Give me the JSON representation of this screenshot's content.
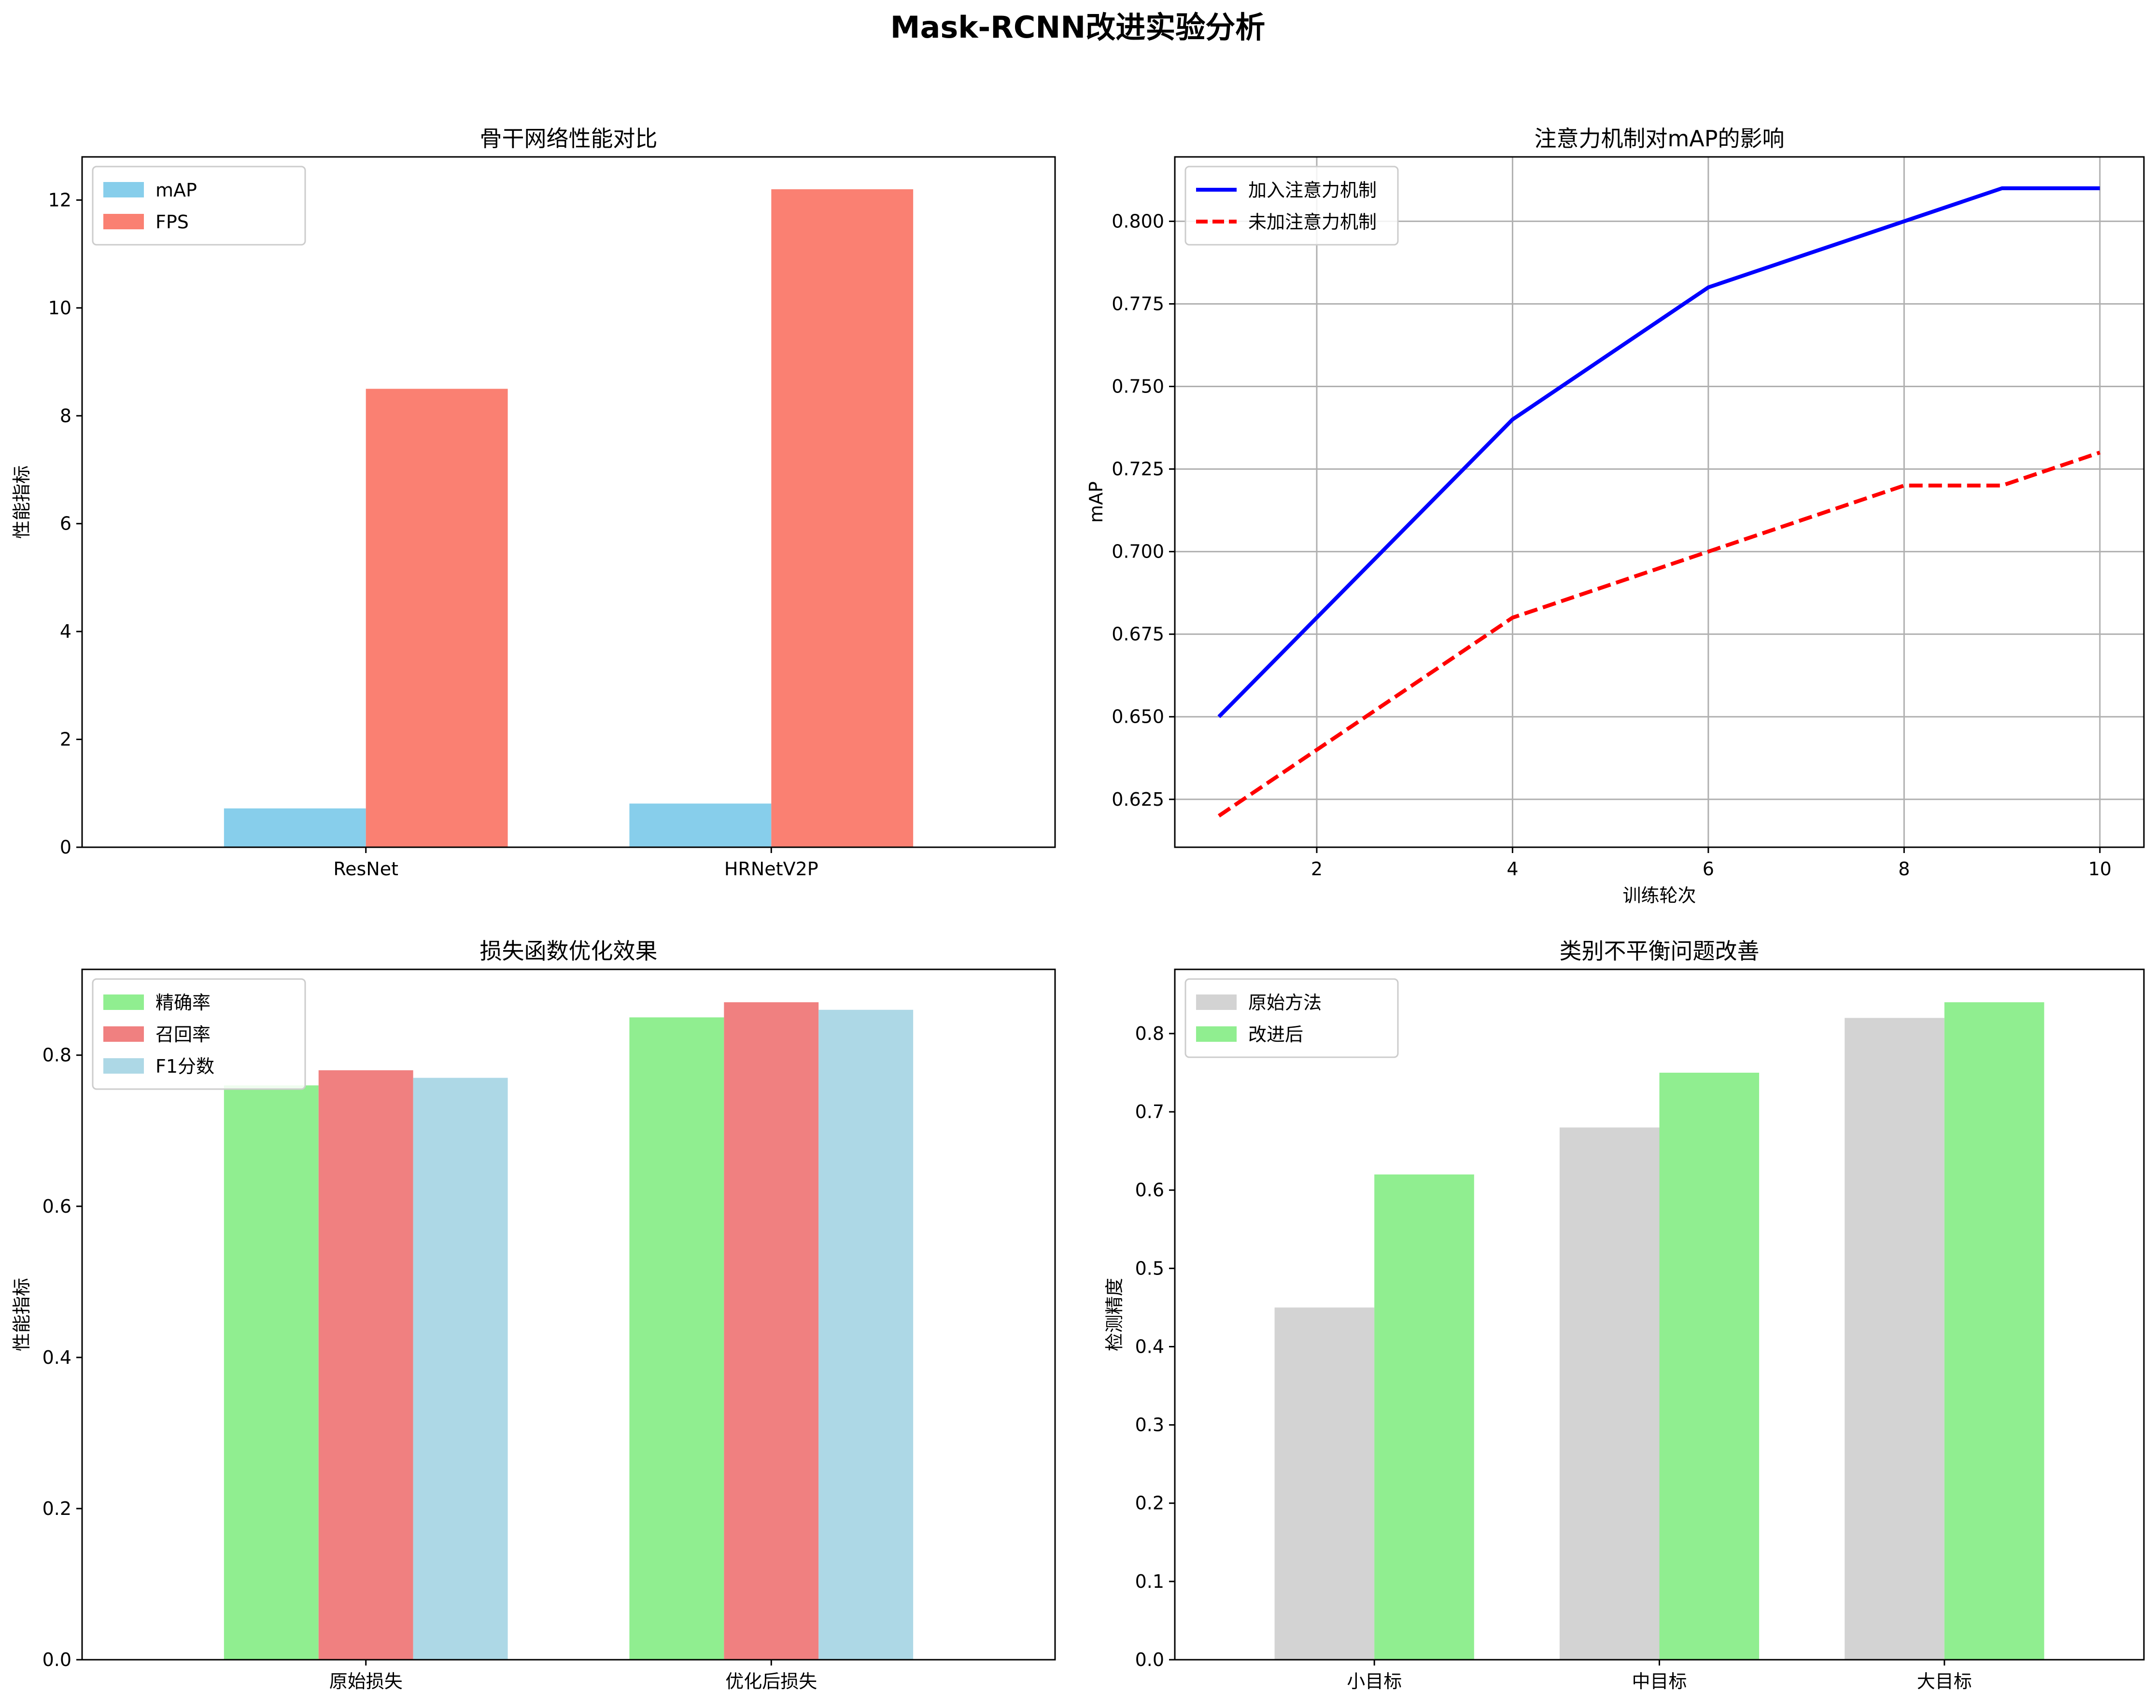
{
  "figure": {
    "suptitle": "Mask-RCNN改进实验分析"
  },
  "chart_data": [
    {
      "type": "bar",
      "title": "骨干网络性能对比",
      "xlabel": "",
      "ylabel": "性能指标",
      "categories": [
        "ResNet",
        "HRNetV2P"
      ],
      "series": [
        {
          "name": "mAP",
          "values": [
            0.72,
            0.81
          ],
          "color": "#87ceeb"
        },
        {
          "name": "FPS",
          "values": [
            8.5,
            12.2
          ],
          "color": "#fa8072"
        }
      ],
      "ylim": [
        0,
        12.8
      ],
      "yticks": [
        0,
        2,
        4,
        6,
        8,
        10,
        12
      ],
      "yticks_labels": [
        "0",
        "2",
        "4",
        "6",
        "8",
        "10",
        "12"
      ],
      "grid": false,
      "legend": "top-left"
    },
    {
      "type": "line",
      "title": "注意力机制对mAP的影响",
      "xlabel": "训练轮次",
      "ylabel": "mAP",
      "x": [
        1,
        2,
        3,
        4,
        5,
        6,
        7,
        8,
        9,
        10
      ],
      "series": [
        {
          "name": "加入注意力机制",
          "values": [
            0.65,
            0.68,
            0.71,
            0.74,
            0.76,
            0.78,
            0.79,
            0.8,
            0.81,
            0.81
          ],
          "color": "#0000ff",
          "dash": "solid"
        },
        {
          "name": "未加注意力机制",
          "values": [
            0.62,
            0.64,
            0.66,
            0.68,
            0.69,
            0.7,
            0.71,
            0.72,
            0.72,
            0.73
          ],
          "color": "#ff0000",
          "dash": "dashed"
        }
      ],
      "xlim": [
        0.55,
        10.45
      ],
      "ylim": [
        0.6105,
        0.8195
      ],
      "xticks": [
        2,
        4,
        6,
        8,
        10
      ],
      "xticks_labels": [
        "2",
        "4",
        "6",
        "8",
        "10"
      ],
      "yticks": [
        0.625,
        0.65,
        0.675,
        0.7,
        0.725,
        0.75,
        0.775,
        0.8
      ],
      "yticks_labels": [
        "0.625",
        "0.650",
        "0.675",
        "0.700",
        "0.725",
        "0.750",
        "0.775",
        "0.800"
      ],
      "grid": true,
      "legend": "top-left"
    },
    {
      "type": "bar",
      "title": "损失函数优化效果",
      "xlabel": "",
      "ylabel": "性能指标",
      "categories": [
        "原始损失",
        "优化后损失"
      ],
      "series": [
        {
          "name": "精确率",
          "values": [
            0.76,
            0.85
          ],
          "color": "#90ee90"
        },
        {
          "name": "召回率",
          "values": [
            0.78,
            0.87
          ],
          "color": "#f08080"
        },
        {
          "name": "F1分数",
          "values": [
            0.77,
            0.86
          ],
          "color": "#add8e6"
        }
      ],
      "ylim": [
        0,
        0.9135
      ],
      "yticks": [
        0,
        0.2,
        0.4,
        0.6,
        0.8
      ],
      "yticks_labels": [
        "0.0",
        "0.2",
        "0.4",
        "0.6",
        "0.8"
      ],
      "grid": false,
      "legend": "top-left"
    },
    {
      "type": "bar",
      "title": "类别不平衡问题改善",
      "xlabel": "",
      "ylabel": "检测精度",
      "categories": [
        "小目标",
        "中目标",
        "大目标"
      ],
      "series": [
        {
          "name": "原始方法",
          "values": [
            0.45,
            0.68,
            0.82
          ],
          "color": "#d3d3d3"
        },
        {
          "name": "改进后",
          "values": [
            0.62,
            0.75,
            0.84
          ],
          "color": "#90ee90"
        }
      ],
      "ylim": [
        0,
        0.882
      ],
      "yticks": [
        0,
        0.1,
        0.2,
        0.3,
        0.4,
        0.5,
        0.6,
        0.7,
        0.8
      ],
      "yticks_labels": [
        "0.0",
        "0.1",
        "0.2",
        "0.3",
        "0.4",
        "0.5",
        "0.6",
        "0.7",
        "0.8"
      ],
      "grid": false,
      "legend": "top-left"
    }
  ]
}
